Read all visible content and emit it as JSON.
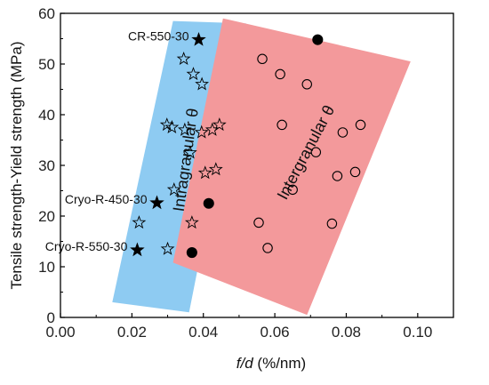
{
  "chart_data": {
    "type": "scatter",
    "title": "",
    "xlabel": "f/d (%/nm)",
    "ylabel": "Tensile strength-Yield strength (MPa)",
    "xlim": [
      0.0,
      0.11
    ],
    "ylim": [
      0,
      60
    ],
    "x_ticks": [
      "0.00",
      "0.02",
      "0.04",
      "0.06",
      "0.08",
      "0.10"
    ],
    "y_ticks": [
      "0",
      "10",
      "20",
      "30",
      "40",
      "50",
      "60"
    ],
    "grid": false,
    "legend": "none",
    "colors": {
      "intra_region": "#8ecbf2",
      "inter_region": "#f3999b",
      "marker": "#000000"
    },
    "regions": [
      {
        "label": "Intragranular θ",
        "color": "#8ecbf2",
        "polygon": [
          [
            0.0315,
            58.5
          ],
          [
            0.052,
            58.0
          ],
          [
            0.036,
            1.0
          ],
          [
            0.0145,
            3.0
          ]
        ]
      },
      {
        "label": "Intergranular θ",
        "color": "#f3999b",
        "polygon": [
          [
            0.0455,
            59.0
          ],
          [
            0.098,
            50.5
          ],
          [
            0.069,
            0.5
          ],
          [
            0.0315,
            10.8
          ]
        ]
      }
    ],
    "series": [
      {
        "marker": "star-open",
        "points": [
          [
            0.0345,
            51.0
          ],
          [
            0.0372,
            48.0
          ],
          [
            0.0396,
            46.0
          ],
          [
            0.0298,
            38.0
          ],
          [
            0.0312,
            37.5
          ],
          [
            0.0348,
            37.0
          ],
          [
            0.0395,
            36.5
          ],
          [
            0.0425,
            37.0
          ],
          [
            0.0445,
            38.0
          ],
          [
            0.0363,
            32.5
          ],
          [
            0.0405,
            28.5
          ],
          [
            0.0435,
            29.2
          ],
          [
            0.0318,
            25.2
          ],
          [
            0.022,
            18.7
          ],
          [
            0.0368,
            18.7
          ],
          [
            0.03,
            13.5
          ]
        ]
      },
      {
        "marker": "star-filled",
        "points": [
          [
            0.0387,
            54.8
          ],
          [
            0.027,
            22.6
          ],
          [
            0.0215,
            13.3
          ]
        ]
      },
      {
        "marker": "circle-open",
        "points": [
          [
            0.0565,
            51.0
          ],
          [
            0.0615,
            48.0
          ],
          [
            0.069,
            46.0
          ],
          [
            0.062,
            38.0
          ],
          [
            0.079,
            36.5
          ],
          [
            0.084,
            38.0
          ],
          [
            0.0715,
            32.6
          ],
          [
            0.065,
            25.2
          ],
          [
            0.0775,
            27.9
          ],
          [
            0.0825,
            28.7
          ],
          [
            0.0555,
            18.7
          ],
          [
            0.076,
            18.5
          ],
          [
            0.058,
            13.7
          ]
        ]
      },
      {
        "marker": "circle-filled",
        "points": [
          [
            0.072,
            54.8
          ],
          [
            0.0415,
            22.5
          ],
          [
            0.0368,
            12.8
          ]
        ]
      }
    ],
    "annotations": [
      {
        "text": "CR-550-30",
        "x": 0.0387,
        "y": 54.8
      },
      {
        "text": "Cryo-R-450-30",
        "x": 0.027,
        "y": 22.6
      },
      {
        "text": "Cryo-R-550-30",
        "x": 0.0215,
        "y": 13.3
      }
    ]
  }
}
